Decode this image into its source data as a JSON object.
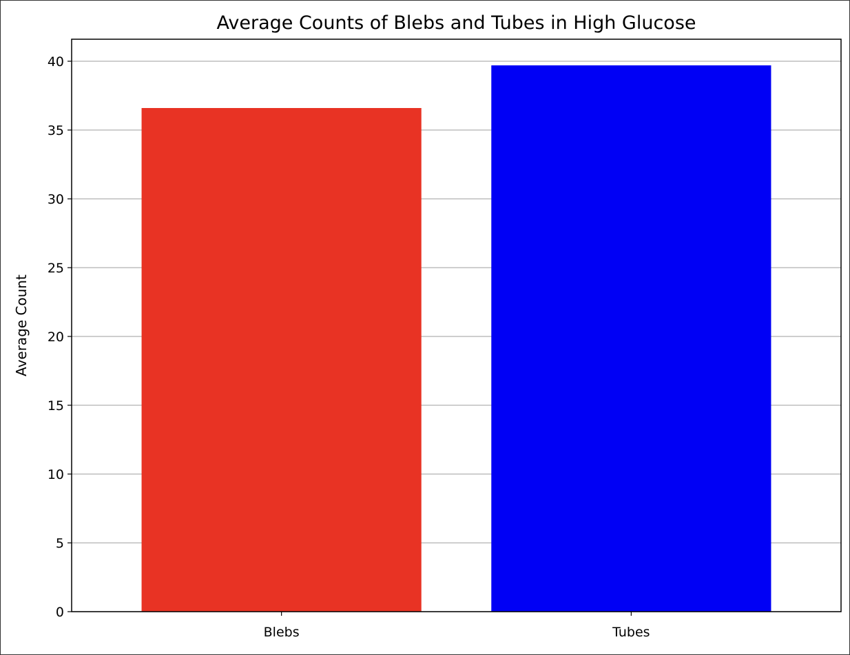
{
  "chart_data": {
    "type": "bar",
    "title": "Average Counts of Blebs and Tubes in High Glucose",
    "xlabel": "",
    "ylabel": "Average Count",
    "categories": [
      "Blebs",
      "Tubes"
    ],
    "values": [
      36.6,
      39.7
    ],
    "colors": [
      "#e83324",
      "#0000f5"
    ],
    "ylim": [
      0,
      41.6
    ],
    "yticks": [
      0,
      5,
      10,
      15,
      20,
      25,
      30,
      35,
      40
    ],
    "grid": "y-axis"
  }
}
